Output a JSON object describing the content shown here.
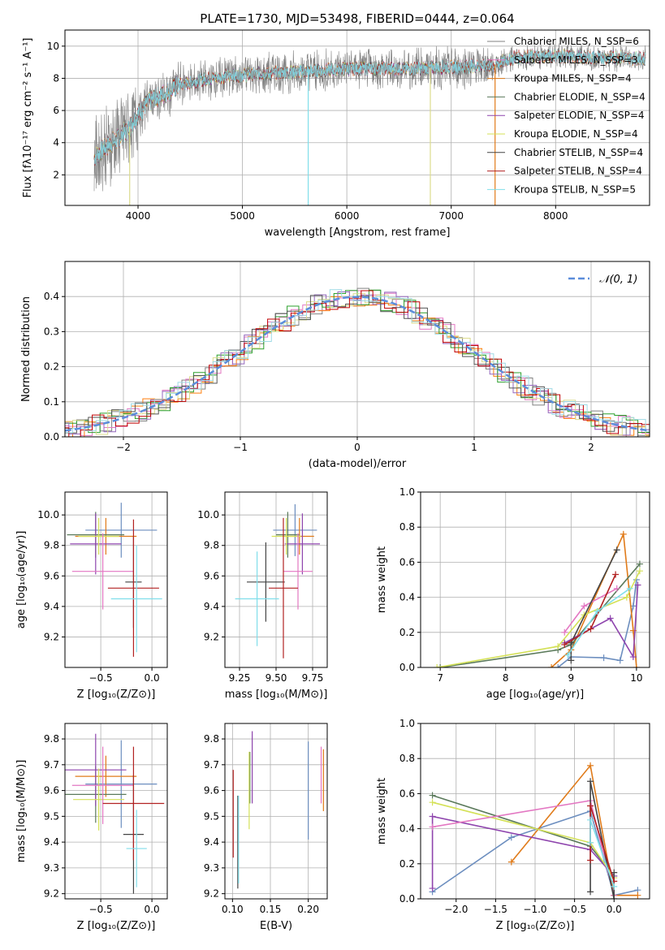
{
  "title": "PLATE=1730, MJD=53498, FIBERID=0444, z=0.064",
  "colors": [
    "#808080",
    "#e377c2",
    "#ff7f0e",
    "#2ca02c",
    "#9467bd",
    "#dbdb8d",
    "#555555",
    "#c00000",
    "#9edae5"
  ],
  "chart_data": [
    {
      "id": "spectrum",
      "type": "line",
      "xlabel": "wavelength [Angstrom, rest frame]",
      "ylabel": "Flux [fλ10⁻¹⁷ erg cm⁻² s⁻¹ A⁻¹]",
      "xlim": [
        3300,
        8900
      ],
      "ylim": [
        0.1,
        11
      ],
      "xticks": [
        4000,
        5000,
        6000,
        7000,
        8000
      ],
      "yticks": [
        2,
        4,
        6,
        8,
        10
      ],
      "legend_position": "upper right",
      "series": [
        {
          "name": "Chabrier MILES, N_SSP=6",
          "color": "#808080"
        },
        {
          "name": "Salpeter MILES, N_SSP=3",
          "color": "#e377c2"
        },
        {
          "name": "Kroupa MILES, N_SSP=4",
          "color": "#e07b1a"
        },
        {
          "name": "Chabrier ELODIE, N_SSP=4",
          "color": "#5b7a5b"
        },
        {
          "name": "Salpeter ELODIE, N_SSP=4",
          "color": "#8e44ad"
        },
        {
          "name": "Kroupa ELODIE, N_SSP=4",
          "color": "#d4e157"
        },
        {
          "name": "Chabrier STELIB, N_SSP=4",
          "color": "#444444"
        },
        {
          "name": "Salpeter STELIB, N_SSP=4",
          "color": "#b22222"
        },
        {
          "name": "Kroupa STELIB, N_SSP=5",
          "color": "#80deea"
        }
      ],
      "continuum": {
        "x": [
          3600,
          3700,
          3800,
          3900,
          4000,
          4100,
          4200,
          4300,
          4400,
          4600,
          4800,
          5000,
          5200,
          5500,
          5800,
          6000,
          6300,
          6600,
          7000,
          7400,
          7600,
          8000,
          8300,
          8600,
          8900
        ],
        "y": [
          3.2,
          3.8,
          4.2,
          4.8,
          5.8,
          6.5,
          6.9,
          7.2,
          7.6,
          7.9,
          8.1,
          8.2,
          8.3,
          8.4,
          8.5,
          8.6,
          8.6,
          8.6,
          8.7,
          8.8,
          9.3,
          9.4,
          9.3,
          9.3,
          9.2
        ]
      }
    },
    {
      "id": "residuals",
      "type": "histogram",
      "xlabel": "(data-model)/error",
      "ylabel": "Normed distribution",
      "xlim": [
        -2.5,
        2.5
      ],
      "ylim": [
        0,
        0.5
      ],
      "xticks": [
        -2,
        -1,
        0,
        1,
        2
      ],
      "yticks": [
        0.0,
        0.1,
        0.2,
        0.3,
        0.4
      ],
      "legend": "𝒩(0, 1)",
      "gaussian": {
        "mean": 0,
        "sigma": 1,
        "color": "#5b8ddb"
      },
      "bin_width": 0.1
    },
    {
      "id": "age_vs_Z",
      "type": "errorbar",
      "xlabel": "Z [log₁₀(Z/Z⊙)]",
      "ylabel": "age  [log₁₀(age/yr)]",
      "xlim": [
        -0.85,
        0.15
      ],
      "ylim": [
        9.0,
        10.15
      ],
      "xticks": [
        -0.5,
        0.0
      ],
      "yticks": [
        9.2,
        9.4,
        9.6,
        9.8,
        10.0
      ],
      "points": [
        {
          "x": -0.3,
          "y": 9.9,
          "xerr": 0.35,
          "yerr": 0.18,
          "color": "#6c8ebf"
        },
        {
          "x": -0.45,
          "y": 9.86,
          "xerr": 0.3,
          "yerr": 0.12,
          "color": "#e07b1a"
        },
        {
          "x": -0.55,
          "y": 9.87,
          "xerr": 0.28,
          "yerr": 0.15,
          "color": "#5b7a5b"
        },
        {
          "x": -0.55,
          "y": 9.81,
          "xerr": 0.25,
          "yerr": 0.2,
          "color": "#8e44ad"
        },
        {
          "x": -0.52,
          "y": 9.86,
          "xerr": 0.2,
          "yerr": 0.12,
          "color": "#d4e157"
        },
        {
          "x": -0.48,
          "y": 9.63,
          "xerr": 0.3,
          "yerr": 0.25,
          "color": "#e377c2"
        },
        {
          "x": -0.18,
          "y": 9.56,
          "xerr": 0.08,
          "yerr": 0.3,
          "color": "#444444"
        },
        {
          "x": -0.18,
          "y": 9.52,
          "xerr": 0.25,
          "yerr": 0.45,
          "color": "#b22222"
        },
        {
          "x": -0.15,
          "y": 9.45,
          "xerr": 0.25,
          "yerr": 0.35,
          "color": "#80deea"
        }
      ]
    },
    {
      "id": "age_vs_mass",
      "type": "errorbar",
      "xlabel": "mass [log₁₀(M/M⊙)]",
      "ylabel": "",
      "xlim": [
        9.15,
        9.85
      ],
      "ylim": [
        9.0,
        10.15
      ],
      "xticks": [
        9.25,
        9.5,
        9.75
      ],
      "yticks": [
        9.2,
        9.4,
        9.6,
        9.8,
        10.0
      ],
      "points": [
        {
          "x": 9.63,
          "y": 9.9,
          "xerr": 0.15,
          "yerr": 0.17,
          "color": "#6c8ebf"
        },
        {
          "x": 9.66,
          "y": 9.86,
          "xerr": 0.1,
          "yerr": 0.12,
          "color": "#e07b1a"
        },
        {
          "x": 9.58,
          "y": 9.87,
          "xerr": 0.08,
          "yerr": 0.15,
          "color": "#5b7a5b"
        },
        {
          "x": 9.68,
          "y": 9.81,
          "xerr": 0.12,
          "yerr": 0.2,
          "color": "#8e44ad"
        },
        {
          "x": 9.57,
          "y": 9.86,
          "xerr": 0.1,
          "yerr": 0.12,
          "color": "#d4e157"
        },
        {
          "x": 9.65,
          "y": 9.63,
          "xerr": 0.1,
          "yerr": 0.25,
          "color": "#e377c2"
        },
        {
          "x": 9.43,
          "y": 9.56,
          "xerr": 0.13,
          "yerr": 0.26,
          "color": "#444444"
        },
        {
          "x": 9.55,
          "y": 9.52,
          "xerr": 0.1,
          "yerr": 0.46,
          "color": "#b22222"
        },
        {
          "x": 9.37,
          "y": 9.45,
          "xerr": 0.15,
          "yerr": 0.31,
          "color": "#80deea"
        }
      ]
    },
    {
      "id": "mass_weight_vs_age",
      "type": "line",
      "xlabel": "age  [log₁₀(age/yr)]",
      "ylabel": "mass weight",
      "xlim": [
        6.7,
        10.2
      ],
      "ylim": [
        0,
        1
      ],
      "xticks": [
        7,
        8,
        9,
        10
      ],
      "yticks": [
        0.0,
        0.2,
        0.4,
        0.6,
        0.8,
        1.0
      ],
      "series": [
        {
          "color": "#6c8ebf",
          "x": [
            8.8,
            9.0,
            9.5,
            9.75,
            9.95,
            10.0
          ],
          "y": [
            0.0,
            0.06,
            0.055,
            0.04,
            0.35,
            0.5
          ]
        },
        {
          "color": "#e07b1a",
          "x": [
            8.7,
            9.0,
            9.8,
            9.95,
            10.0
          ],
          "y": [
            0.0,
            0.1,
            0.76,
            0.21,
            0.0
          ]
        },
        {
          "color": "#5b7a5b",
          "x": [
            7.0,
            8.8,
            9.0,
            10.05
          ],
          "y": [
            0.0,
            0.1,
            0.13,
            0.59
          ]
        },
        {
          "color": "#8e44ad",
          "x": [
            8.9,
            9.6,
            9.95,
            10.02
          ],
          "y": [
            0.14,
            0.28,
            0.06,
            0.47
          ]
        },
        {
          "color": "#d4e157",
          "x": [
            6.95,
            8.8,
            9.2,
            9.85,
            10.05
          ],
          "y": [
            0.0,
            0.12,
            0.3,
            0.4,
            0.55
          ]
        },
        {
          "color": "#e377c2",
          "x": [
            8.9,
            9.2,
            9.7
          ],
          "y": [
            0.2,
            0.35,
            0.45
          ]
        },
        {
          "color": "#444444",
          "x": [
            9.0,
            9.0,
            9.7
          ],
          "y": [
            0.04,
            0.14,
            0.67
          ]
        },
        {
          "color": "#b22222",
          "x": [
            8.9,
            9.3,
            9.68
          ],
          "y": [
            0.13,
            0.22,
            0.53
          ]
        },
        {
          "color": "#80deea",
          "x": [
            8.95,
            9.4,
            9.9
          ],
          "y": [
            0.07,
            0.32,
            0.45
          ]
        }
      ]
    },
    {
      "id": "mass_vs_Z",
      "type": "errorbar",
      "xlabel": "Z [log₁₀(Z/Z⊙)]",
      "ylabel": "mass [log₁₀(M/M⊙)]",
      "xlim": [
        -0.85,
        0.15
      ],
      "ylim": [
        9.18,
        9.86
      ],
      "xticks": [
        -0.5,
        0.0
      ],
      "yticks": [
        9.2,
        9.3,
        9.4,
        9.5,
        9.6,
        9.7,
        9.8
      ],
      "points": [
        {
          "x": -0.3,
          "y": 9.625,
          "xerr": 0.35,
          "yerr": 0.17,
          "color": "#6c8ebf"
        },
        {
          "x": -0.45,
          "y": 9.655,
          "xerr": 0.3,
          "yerr": 0.08,
          "color": "#e07b1a"
        },
        {
          "x": -0.55,
          "y": 9.585,
          "xerr": 0.3,
          "yerr": 0.11,
          "color": "#5b7a5b"
        },
        {
          "x": -0.55,
          "y": 9.68,
          "xerr": 0.3,
          "yerr": 0.14,
          "color": "#8e44ad"
        },
        {
          "x": -0.52,
          "y": 9.565,
          "xerr": 0.25,
          "yerr": 0.12,
          "color": "#d4e157"
        },
        {
          "x": -0.48,
          "y": 9.62,
          "xerr": 0.3,
          "yerr": 0.15,
          "color": "#e377c2"
        },
        {
          "x": -0.18,
          "y": 9.43,
          "xerr": 0.1,
          "yerr": 0.23,
          "color": "#444444"
        },
        {
          "x": -0.18,
          "y": 9.55,
          "xerr": 0.3,
          "yerr": 0.22,
          "color": "#b22222"
        },
        {
          "x": -0.15,
          "y": 9.375,
          "xerr": 0.1,
          "yerr": 0.15,
          "color": "#80deea"
        }
      ]
    },
    {
      "id": "mass_vs_ebv",
      "type": "errorbar",
      "xlabel": "E(B-V)",
      "ylabel": "",
      "xlim": [
        0.09,
        0.225
      ],
      "ylim": [
        9.18,
        9.86
      ],
      "xticks": [
        0.1,
        0.15,
        0.2
      ],
      "yticks": [
        9.2,
        9.3,
        9.4,
        9.5,
        9.6,
        9.7,
        9.8
      ],
      "points": [
        {
          "x": 0.2,
          "y": 9.6,
          "xerr": 0.0,
          "yerr": 0.19,
          "color": "#6c8ebf"
        },
        {
          "x": 0.22,
          "y": 9.64,
          "xerr": 0.0,
          "yerr": 0.12,
          "color": "#e07b1a"
        },
        {
          "x": 0.123,
          "y": 9.65,
          "xerr": 0.0,
          "yerr": 0.1,
          "color": "#5b7a5b"
        },
        {
          "x": 0.126,
          "y": 9.69,
          "xerr": 0.0,
          "yerr": 0.14,
          "color": "#8e44ad"
        },
        {
          "x": 0.122,
          "y": 9.6,
          "xerr": 0.0,
          "yerr": 0.15,
          "color": "#d4e157"
        },
        {
          "x": 0.217,
          "y": 9.66,
          "xerr": 0.0,
          "yerr": 0.11,
          "color": "#e377c2"
        },
        {
          "x": 0.107,
          "y": 9.4,
          "xerr": 0.0,
          "yerr": 0.18,
          "color": "#444444"
        },
        {
          "x": 0.101,
          "y": 9.51,
          "xerr": 0.0,
          "yerr": 0.17,
          "color": "#b22222"
        },
        {
          "x": 0.108,
          "y": 9.41,
          "xerr": 0.0,
          "yerr": 0.17,
          "color": "#80deea"
        }
      ]
    },
    {
      "id": "mass_weight_vs_Z",
      "type": "line",
      "xlabel": "Z [log₁₀(Z/Z⊙)]",
      "ylabel": "mass weight",
      "xlim": [
        -2.45,
        0.45
      ],
      "ylim": [
        0,
        1
      ],
      "xticks": [
        -2.0,
        -1.5,
        -1.0,
        -0.5,
        0.0
      ],
      "yticks": [
        0.0,
        0.2,
        0.4,
        0.6,
        0.8,
        1.0
      ],
      "series": [
        {
          "color": "#6c8ebf",
          "x": [
            -2.3,
            -1.3,
            -0.3,
            0.0,
            0.3
          ],
          "y": [
            0.04,
            0.35,
            0.5,
            0.02,
            0.05
          ]
        },
        {
          "color": "#e07b1a",
          "x": [
            -1.3,
            -0.3,
            0.0,
            0.3
          ],
          "y": [
            0.21,
            0.76,
            0.02,
            0.02
          ]
        },
        {
          "color": "#5b7a5b",
          "x": [
            -2.3,
            -0.3,
            0.0
          ],
          "y": [
            0.59,
            0.3,
            0.13
          ]
        },
        {
          "color": "#8e44ad",
          "x": [
            -2.3,
            -2.3,
            -0.3,
            0.0
          ],
          "y": [
            0.06,
            0.47,
            0.28,
            0.13
          ]
        },
        {
          "color": "#d4e157",
          "x": [
            -2.3,
            -0.3,
            0.0
          ],
          "y": [
            0.55,
            0.32,
            0.12
          ]
        },
        {
          "color": "#e377c2",
          "x": [
            -2.3,
            -0.3,
            0.0
          ],
          "y": [
            0.41,
            0.56,
            0.02
          ]
        },
        {
          "color": "#444444",
          "x": [
            -0.3,
            -0.3,
            0.0,
            0.0
          ],
          "y": [
            0.04,
            0.67,
            0.0,
            0.15
          ]
        },
        {
          "color": "#b22222",
          "x": [
            -0.3,
            -0.3,
            0.0
          ],
          "y": [
            0.22,
            0.53,
            0.1
          ]
        },
        {
          "color": "#80deea",
          "x": [
            -0.3,
            -0.3,
            0.0
          ],
          "y": [
            0.32,
            0.45,
            0.07
          ]
        }
      ]
    }
  ]
}
